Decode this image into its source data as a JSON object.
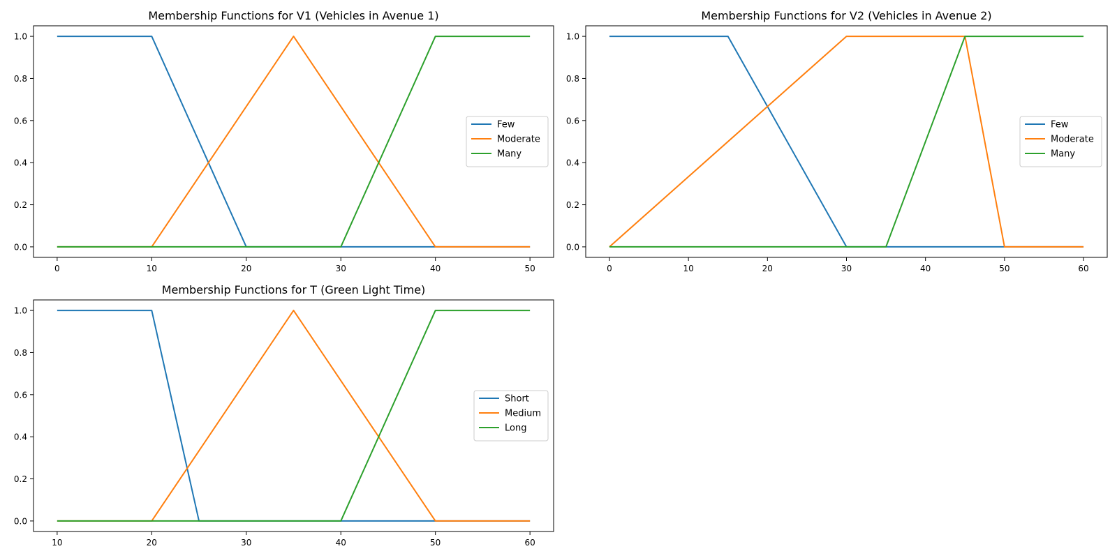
{
  "chart_data": [
    {
      "type": "line",
      "title": "Membership Functions for V1 (Vehicles in Avenue 1)",
      "xlabel": "",
      "ylabel": "",
      "xlim": [
        -2.5,
        52.5
      ],
      "ylim": [
        -0.05,
        1.05
      ],
      "xticks": [
        0,
        10,
        20,
        30,
        40,
        50
      ],
      "yticks": [
        0.0,
        0.2,
        0.4,
        0.6,
        0.8,
        1.0
      ],
      "grid": false,
      "legend_position": "right",
      "series": [
        {
          "name": "Few",
          "color": "#1f77b4",
          "x": [
            0,
            10,
            20,
            50
          ],
          "y": [
            1,
            1,
            0,
            0
          ]
        },
        {
          "name": "Moderate",
          "color": "#ff7f0e",
          "x": [
            0,
            10,
            25,
            40,
            50
          ],
          "y": [
            0,
            0,
            1,
            0,
            0
          ]
        },
        {
          "name": "Many",
          "color": "#2ca02c",
          "x": [
            0,
            30,
            40,
            50
          ],
          "y": [
            0,
            0,
            1,
            1
          ]
        }
      ]
    },
    {
      "type": "line",
      "title": "Membership Functions for V2 (Vehicles in Avenue 2)",
      "xlabel": "",
      "ylabel": "",
      "xlim": [
        -3,
        63
      ],
      "ylim": [
        -0.05,
        1.05
      ],
      "xticks": [
        0,
        10,
        20,
        30,
        40,
        50,
        60
      ],
      "yticks": [
        0.0,
        0.2,
        0.4,
        0.6,
        0.8,
        1.0
      ],
      "grid": false,
      "legend_position": "right",
      "series": [
        {
          "name": "Few",
          "color": "#1f77b4",
          "x": [
            0,
            15,
            30,
            60
          ],
          "y": [
            1,
            1,
            0,
            0
          ]
        },
        {
          "name": "Moderate",
          "color": "#ff7f0e",
          "x": [
            0,
            30,
            45,
            50,
            60
          ],
          "y": [
            0,
            1,
            1,
            0,
            0
          ]
        },
        {
          "name": "Many",
          "color": "#2ca02c",
          "x": [
            0,
            35,
            45,
            60
          ],
          "y": [
            0,
            0,
            1,
            1
          ]
        }
      ]
    },
    {
      "type": "line",
      "title": "Membership Functions for T (Green Light Time)",
      "xlabel": "",
      "ylabel": "",
      "xlim": [
        7.5,
        62.5
      ],
      "ylim": [
        -0.05,
        1.05
      ],
      "xticks": [
        10,
        20,
        30,
        40,
        50,
        60
      ],
      "yticks": [
        0.0,
        0.2,
        0.4,
        0.6,
        0.8,
        1.0
      ],
      "grid": false,
      "legend_position": "right",
      "series": [
        {
          "name": "Short",
          "color": "#1f77b4",
          "x": [
            10,
            20,
            25,
            60
          ],
          "y": [
            1,
            1,
            0,
            0
          ]
        },
        {
          "name": "Medium",
          "color": "#ff7f0e",
          "x": [
            10,
            20,
            35,
            50,
            60
          ],
          "y": [
            0,
            0,
            1,
            0,
            0
          ]
        },
        {
          "name": "Long",
          "color": "#2ca02c",
          "x": [
            10,
            40,
            50,
            60
          ],
          "y": [
            0,
            0,
            1,
            1
          ]
        }
      ]
    }
  ]
}
